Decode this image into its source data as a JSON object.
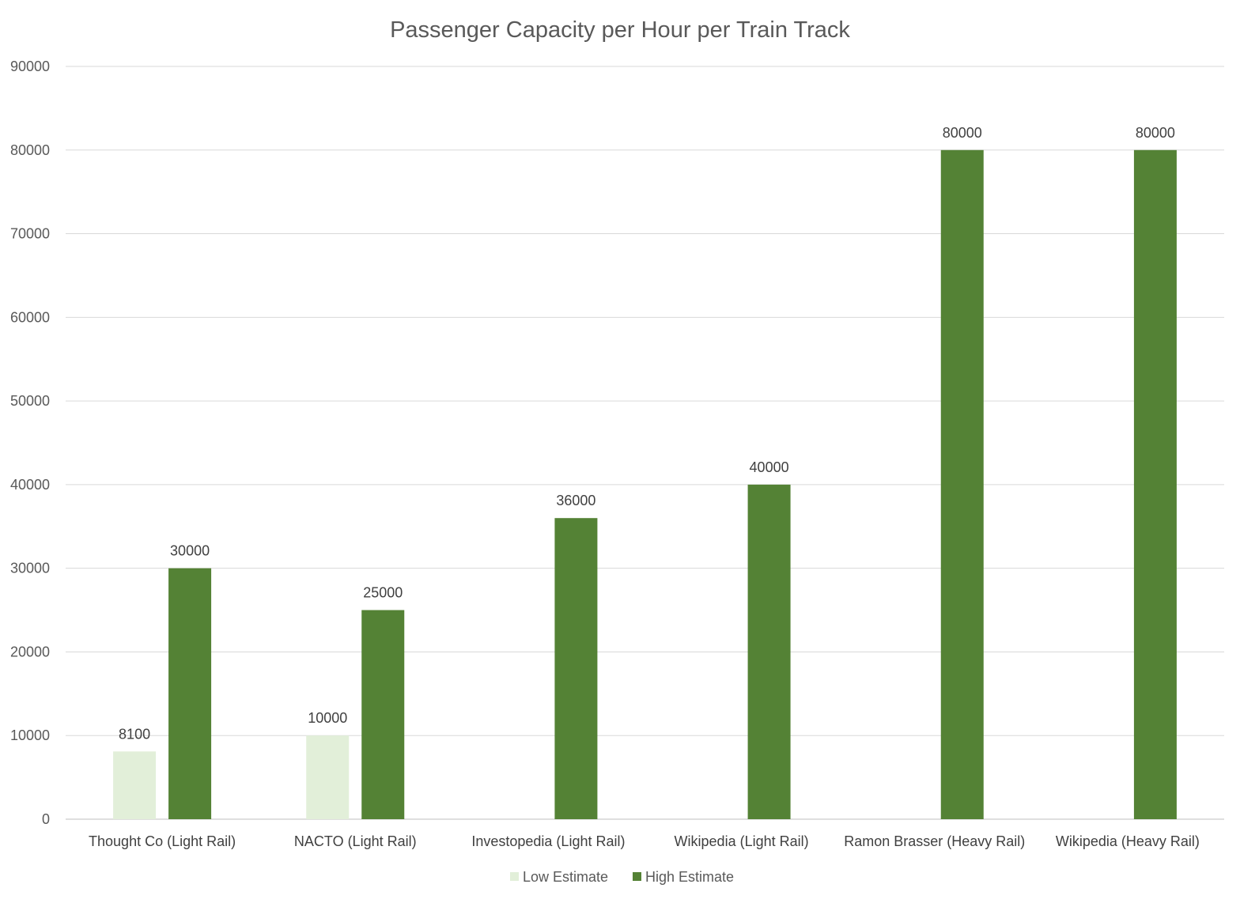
{
  "chart_data": {
    "type": "bar",
    "title": "Passenger Capacity per Hour per Train Track",
    "xlabel": "",
    "ylabel": "",
    "categories": [
      "Thought Co (Light Rail)",
      "NACTO (Light Rail)",
      "Investopedia (Light Rail)",
      "Wikipedia (Light Rail)",
      "Ramon Brasser (Heavy Rail)",
      "Wikipedia (Heavy Rail)"
    ],
    "series": [
      {
        "name": "Low Estimate",
        "color": "#e2efd9",
        "values": [
          8100,
          10000,
          null,
          null,
          null,
          null
        ]
      },
      {
        "name": "High Estimate",
        "color": "#548235",
        "values": [
          30000,
          25000,
          36000,
          40000,
          80000,
          80000
        ]
      }
    ],
    "ylim": [
      0,
      90000
    ],
    "yticks": [
      0,
      10000,
      20000,
      30000,
      40000,
      50000,
      60000,
      70000,
      80000,
      90000
    ],
    "grid": true,
    "legend_position": "bottom-center",
    "data_labels": true
  }
}
